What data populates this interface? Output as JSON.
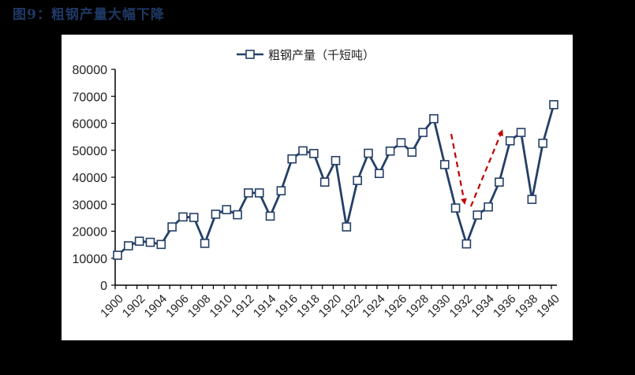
{
  "figure": {
    "title": "图9：粗钢产量大幅下降"
  },
  "legend": {
    "label": "粗钢产量（千短吨）"
  },
  "colors": {
    "line": "#243f66",
    "marker_fill": "#ffffff",
    "arrow": "#c00000",
    "background": "#000000",
    "panel": "#ffffff",
    "title": "#1f3864"
  },
  "chart_data": {
    "type": "line",
    "title": "",
    "xlabel": "",
    "ylabel": "",
    "ylim": [
      0,
      80000
    ],
    "yticks": [
      0,
      10000,
      20000,
      30000,
      40000,
      50000,
      60000,
      70000,
      80000
    ],
    "xtick_labels": [
      "1900",
      "1902",
      "1904",
      "1906",
      "1908",
      "1910",
      "1912",
      "1914",
      "1916",
      "1918",
      "1920",
      "1922",
      "1924",
      "1926",
      "1928",
      "1930",
      "1932",
      "1934",
      "1936",
      "1938",
      "1940"
    ],
    "grid": false,
    "legend_position": "top",
    "x": [
      1900,
      1901,
      1902,
      1903,
      1904,
      1905,
      1906,
      1907,
      1908,
      1909,
      1910,
      1911,
      1912,
      1913,
      1914,
      1915,
      1916,
      1917,
      1918,
      1919,
      1920,
      1921,
      1922,
      1923,
      1924,
      1925,
      1926,
      1927,
      1928,
      1929,
      1930,
      1931,
      1932,
      1933,
      1934,
      1935,
      1936,
      1937,
      1938,
      1939,
      1940
    ],
    "series": [
      {
        "name": "粗钢产量（千短吨）",
        "values": [
          11100,
          14600,
          16300,
          15900,
          15100,
          21600,
          25300,
          25100,
          15500,
          26300,
          28000,
          26100,
          34200,
          34200,
          25600,
          35000,
          46800,
          49800,
          48800,
          38200,
          46200,
          21600,
          38800,
          48900,
          41400,
          49700,
          52800,
          49300,
          56600,
          61700,
          44700,
          28600,
          15300,
          26000,
          29000,
          38200,
          53500,
          56600,
          31800,
          52600,
          66900
        ]
      }
    ],
    "annotations": [
      {
        "type": "dashed-arrow",
        "direction": "down",
        "from_year": 1930.5,
        "to_year": 1931.7,
        "color": "#c00000"
      },
      {
        "type": "dashed-arrow",
        "direction": "up",
        "from_year": 1932.3,
        "to_year": 1935.2,
        "color": "#c00000"
      }
    ]
  }
}
